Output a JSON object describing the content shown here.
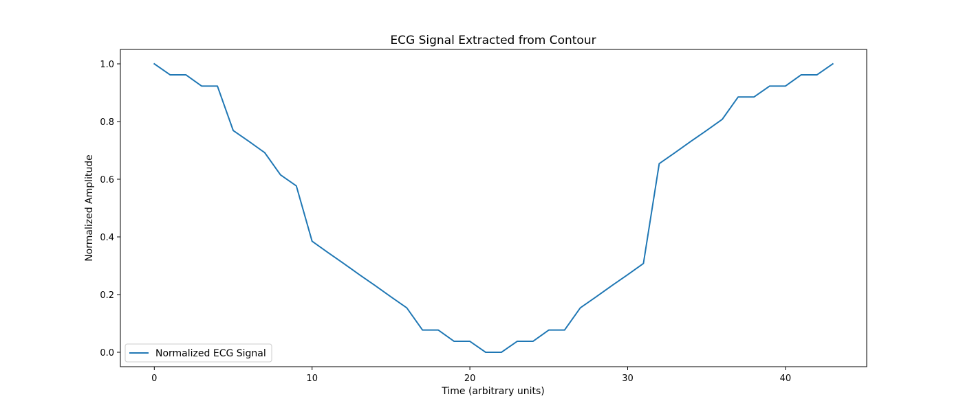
{
  "chart_data": {
    "type": "line",
    "title": "ECG Signal Extracted from Contour",
    "xlabel": "Time (arbitrary units)",
    "ylabel": "Normalized Amplitude",
    "xlim": [
      -2.15,
      45.15
    ],
    "ylim": [
      -0.05,
      1.05
    ],
    "xticks": [
      0,
      10,
      20,
      30,
      40
    ],
    "xtick_labels": [
      "0",
      "10",
      "20",
      "30",
      "40"
    ],
    "yticks": [
      0.0,
      0.2,
      0.4,
      0.6,
      0.8,
      1.0
    ],
    "ytick_labels": [
      "0.0",
      "0.2",
      "0.4",
      "0.6",
      "0.8",
      "1.0"
    ],
    "grid": false,
    "legend_position": "lower-left",
    "series": [
      {
        "name": "Normalized ECG Signal",
        "color": "#1f77b4",
        "x": [
          0,
          1,
          2,
          3,
          4,
          5,
          6,
          7,
          8,
          9,
          10,
          11,
          12,
          13,
          14,
          15,
          16,
          17,
          18,
          19,
          20,
          21,
          22,
          23,
          24,
          25,
          26,
          27,
          28,
          29,
          30,
          31,
          32,
          33,
          34,
          35,
          36,
          37,
          38,
          39,
          40,
          41,
          42,
          43
        ],
        "values": [
          1.0,
          0.962,
          0.962,
          0.923,
          0.923,
          0.769,
          0.731,
          0.692,
          0.615,
          0.577,
          0.385,
          0.346,
          0.308,
          0.269,
          0.231,
          0.192,
          0.154,
          0.077,
          0.077,
          0.038,
          0.038,
          0.0,
          0.0,
          0.038,
          0.038,
          0.077,
          0.077,
          0.154,
          0.192,
          0.231,
          0.269,
          0.308,
          0.654,
          0.692,
          0.731,
          0.769,
          0.808,
          0.885,
          0.885,
          0.923,
          0.923,
          0.962,
          0.962,
          1.0
        ]
      }
    ]
  }
}
